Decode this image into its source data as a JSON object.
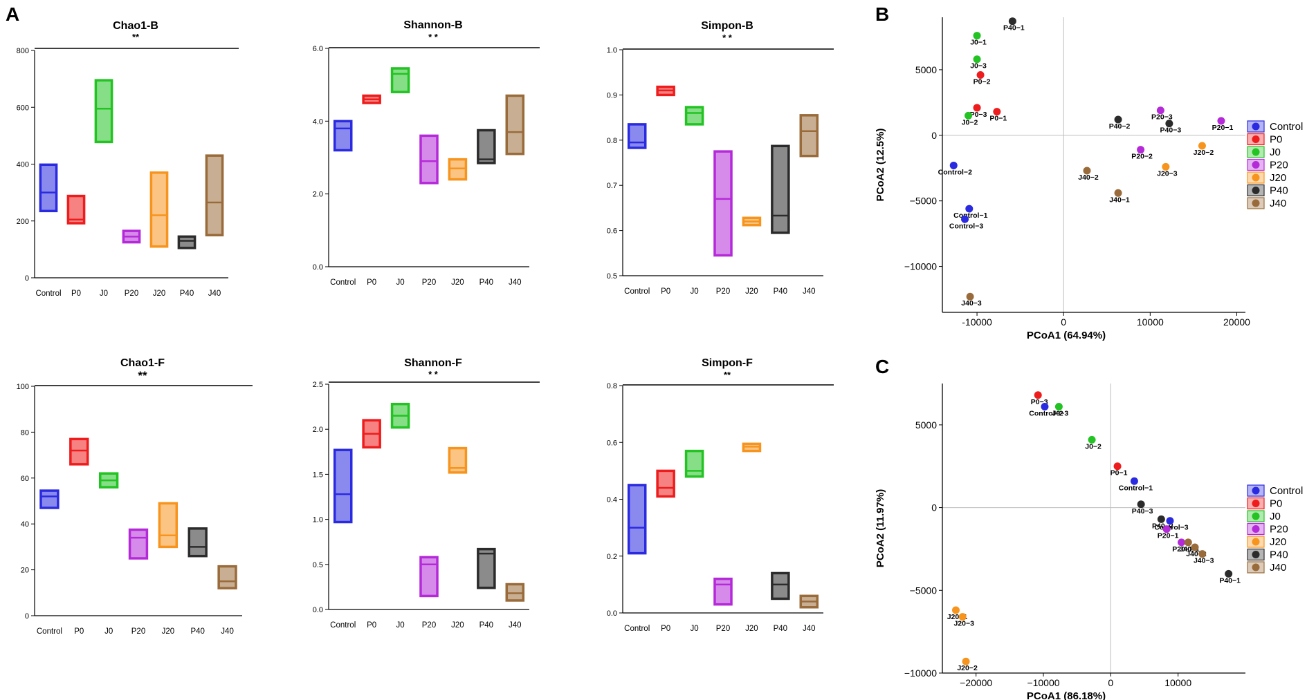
{
  "panel_labels": {
    "a": "A",
    "b": "B",
    "c": "C"
  },
  "group_colors": {
    "Control": "#2a2ae0",
    "P0": "#ee1c1c",
    "J0": "#22c322",
    "P20": "#b52ad8",
    "J20": "#f7941d",
    "P40": "#2b2b2b",
    "J40": "#9a6b3a"
  },
  "chart_data": [
    {
      "type": "box",
      "title": "Chao1-B",
      "significance": "**",
      "categories": [
        "Control",
        "P0",
        "J0",
        "P20",
        "J20",
        "P40",
        "J40"
      ],
      "ylim": [
        0,
        800
      ],
      "yticks": [
        0,
        200,
        400,
        600,
        800
      ],
      "ytick_labels": [
        "0",
        "200",
        "400",
        "600",
        "800"
      ],
      "boxes": [
        [
          235,
          300,
          398
        ],
        [
          192,
          205,
          288
        ],
        [
          478,
          595,
          695
        ],
        [
          125,
          145,
          165
        ],
        [
          110,
          220,
          370
        ],
        [
          105,
          130,
          145
        ],
        [
          150,
          265,
          430
        ]
      ]
    },
    {
      "type": "box",
      "title": "Shannon-B",
      "significance": "* *",
      "categories": [
        "Control",
        "P0",
        "J0",
        "P20",
        "J20",
        "P40",
        "J40"
      ],
      "ylim": [
        0,
        6
      ],
      "yticks": [
        0,
        2,
        4,
        6
      ],
      "ytick_labels": [
        "0.0",
        "2.0",
        "4.0",
        "6.0"
      ],
      "boxes": [
        [
          3.2,
          3.8,
          4.0
        ],
        [
          4.5,
          4.6,
          4.7
        ],
        [
          4.8,
          5.3,
          5.45
        ],
        [
          2.3,
          2.9,
          3.6
        ],
        [
          2.4,
          2.7,
          2.95
        ],
        [
          2.85,
          2.95,
          3.75
        ],
        [
          3.1,
          3.7,
          4.7
        ]
      ]
    },
    {
      "type": "box",
      "title": "Simpon-B",
      "significance": "* *",
      "categories": [
        "Control",
        "P0",
        "J0",
        "P20",
        "J20",
        "P40",
        "J40"
      ],
      "ylim": [
        0.5,
        1.0
      ],
      "yticks": [
        0.5,
        0.6,
        0.7,
        0.8,
        0.9,
        1.0
      ],
      "ytick_labels": [
        "0.5",
        "0.6",
        "0.7",
        "0.8",
        "0.9",
        "1.0"
      ],
      "boxes": [
        [
          0.783,
          0.795,
          0.835
        ],
        [
          0.9,
          0.91,
          0.918
        ],
        [
          0.835,
          0.86,
          0.873
        ],
        [
          0.545,
          0.67,
          0.775
        ],
        [
          0.612,
          0.62,
          0.628
        ],
        [
          0.595,
          0.633,
          0.787
        ],
        [
          0.765,
          0.82,
          0.855
        ]
      ]
    },
    {
      "type": "box",
      "title": "Chao1-F",
      "significance": "**",
      "categories": [
        "Control",
        "P0",
        "J0",
        "P20",
        "J20",
        "P40",
        "J40"
      ],
      "ylim": [
        0,
        100
      ],
      "yticks": [
        0,
        20,
        40,
        60,
        80,
        100
      ],
      "ytick_labels": [
        "0",
        "20",
        "40",
        "60",
        "80",
        "100"
      ],
      "boxes": [
        [
          47,
          52,
          54.5
        ],
        [
          66,
          72,
          77
        ],
        [
          56,
          59,
          62
        ],
        [
          25,
          34,
          37.5
        ],
        [
          30,
          35,
          49
        ],
        [
          26,
          30,
          38
        ],
        [
          12,
          15,
          21.5
        ]
      ]
    },
    {
      "type": "box",
      "title": "Shannon-F",
      "significance": "* *",
      "categories": [
        "Control",
        "P0",
        "J0",
        "P20",
        "J20",
        "P40",
        "J40"
      ],
      "ylim": [
        0,
        2.5
      ],
      "yticks": [
        0,
        0.5,
        1.0,
        1.5,
        2.0,
        2.5
      ],
      "ytick_labels": [
        "0.0",
        "0.5",
        "1.0",
        "1.5",
        "2.0",
        "2.5"
      ],
      "boxes": [
        [
          0.97,
          1.28,
          1.77
        ],
        [
          1.8,
          1.95,
          2.1
        ],
        [
          2.02,
          2.15,
          2.28
        ],
        [
          0.15,
          0.5,
          0.58
        ],
        [
          1.52,
          1.57,
          1.79
        ],
        [
          0.24,
          0.62,
          0.67
        ],
        [
          0.1,
          0.18,
          0.28
        ]
      ]
    },
    {
      "type": "box",
      "title": "Simpon-F",
      "significance": "**",
      "categories": [
        "Control",
        "P0",
        "J0",
        "P20",
        "J20",
        "P40",
        "J40"
      ],
      "ylim": [
        0,
        0.8
      ],
      "yticks": [
        0,
        0.2,
        0.4,
        0.6,
        0.8
      ],
      "ytick_labels": [
        "0.0",
        "0.2",
        "0.4",
        "0.6",
        "0.8"
      ],
      "boxes": [
        [
          0.21,
          0.3,
          0.45
        ],
        [
          0.41,
          0.44,
          0.5
        ],
        [
          0.48,
          0.5,
          0.57
        ],
        [
          0.03,
          0.1,
          0.12
        ],
        [
          0.57,
          0.585,
          0.595
        ],
        [
          0.05,
          0.1,
          0.14
        ],
        [
          0.02,
          0.04,
          0.06
        ]
      ]
    },
    {
      "type": "scatter",
      "panel": "B",
      "xlabel": "PCoA1 (64.94%)",
      "ylabel": "PCoA2 (12.5%)",
      "xlim": [
        -14000,
        21000
      ],
      "ylim": [
        -13500,
        9000
      ],
      "xticks": [
        -10000,
        0,
        10000,
        20000
      ],
      "xtick_labels": [
        "-10000",
        "0",
        "10000",
        "20000"
      ],
      "yticks": [
        -10000,
        -5000,
        0,
        5000
      ],
      "ytick_labels": [
        "−10000",
        "−5000",
        "0",
        "5000"
      ],
      "legend": [
        "Control",
        "P0",
        "J0",
        "P20",
        "J20",
        "P40",
        "J40"
      ],
      "points": [
        {
          "label": "P40−1",
          "group": "P40",
          "x": -5900,
          "y": 8700
        },
        {
          "label": "J0−1",
          "group": "J0",
          "x": -10000,
          "y": 7600
        },
        {
          "label": "J0−3",
          "group": "J0",
          "x": -10000,
          "y": 5800
        },
        {
          "label": "P0−2",
          "group": "P0",
          "x": -9600,
          "y": 4600
        },
        {
          "label": "P0−3",
          "group": "P0",
          "x": -10000,
          "y": 2100
        },
        {
          "label": "P0−1",
          "group": "P0",
          "x": -7700,
          "y": 1800
        },
        {
          "label": "J0−2",
          "group": "J0",
          "x": -11000,
          "y": 1500
        },
        {
          "label": "Control−2",
          "group": "Control",
          "x": -12700,
          "y": -2300
        },
        {
          "label": "Control−1",
          "group": "Control",
          "x": -10900,
          "y": -5600
        },
        {
          "label": "Control−3",
          "group": "Control",
          "x": -11400,
          "y": -6400
        },
        {
          "label": "J40−3",
          "group": "J40",
          "x": -10800,
          "y": -12300
        },
        {
          "label": "P40−2",
          "group": "P40",
          "x": 6300,
          "y": 1200
        },
        {
          "label": "P20−3",
          "group": "P20",
          "x": 11200,
          "y": 1900
        },
        {
          "label": "P40−3",
          "group": "P40",
          "x": 12200,
          "y": 900
        },
        {
          "label": "P20−1",
          "group": "P20",
          "x": 18200,
          "y": 1100
        },
        {
          "label": "P20−2",
          "group": "P20",
          "x": 8900,
          "y": -1100
        },
        {
          "label": "J20−2",
          "group": "J20",
          "x": 16000,
          "y": -800
        },
        {
          "label": "J20−3",
          "group": "J20",
          "x": 11800,
          "y": -2400
        },
        {
          "label": "J40−2",
          "group": "J40",
          "x": 2700,
          "y": -2700
        },
        {
          "label": "J40−1",
          "group": "J40",
          "x": 6300,
          "y": -4400
        }
      ]
    },
    {
      "type": "scatter",
      "panel": "C",
      "xlabel": "PCoA1 (86.18%)",
      "ylabel": "PCoA2 (11.97%)",
      "xlim": [
        -25000,
        20000
      ],
      "ylim": [
        -10000,
        7500
      ],
      "xticks": [
        -20000,
        -10000,
        0,
        10000
      ],
      "xtick_labels": [
        "−20000",
        "−10000",
        "0",
        "10000"
      ],
      "yticks": [
        -10000,
        -5000,
        0,
        5000
      ],
      "ytick_labels": [
        "−10000",
        "−5000",
        "0",
        "5000"
      ],
      "legend": [
        "Control",
        "P0",
        "J0",
        "P20",
        "J20",
        "P40",
        "J40"
      ],
      "points": [
        {
          "label": "P0−3",
          "group": "P0",
          "x": -10800,
          "y": 6800
        },
        {
          "label": "Control−2",
          "group": "Control",
          "x": -9800,
          "y": 6100
        },
        {
          "label": "J0−3",
          "group": "J0",
          "x": -7700,
          "y": 6100
        },
        {
          "label": "J0−2",
          "group": "J0",
          "x": -2800,
          "y": 4100
        },
        {
          "label": "P0−1",
          "group": "P0",
          "x": 1000,
          "y": 2500
        },
        {
          "label": "Control−1",
          "group": "Control",
          "x": 3500,
          "y": 1600
        },
        {
          "label": "P40−3",
          "group": "P40",
          "x": 4500,
          "y": 200
        },
        {
          "label": "P40−2",
          "group": "P40",
          "x": 7500,
          "y": -700
        },
        {
          "label": "Control−3",
          "group": "Control",
          "x": 8800,
          "y": -800
        },
        {
          "label": "P20−1",
          "group": "P20",
          "x": 8300,
          "y": -1300
        },
        {
          "label": "P20−2",
          "group": "P20",
          "x": 10500,
          "y": -2100
        },
        {
          "label": "J40−1",
          "group": "J40",
          "x": 11500,
          "y": -2100
        },
        {
          "label": "J40−2",
          "group": "J40",
          "x": 12500,
          "y": -2400
        },
        {
          "label": "J40−3",
          "group": "J40",
          "x": 13600,
          "y": -2800
        },
        {
          "label": "P40−1",
          "group": "P40",
          "x": 17500,
          "y": -4000
        },
        {
          "label": "J20−1",
          "group": "J20",
          "x": -23000,
          "y": -6200
        },
        {
          "label": "J20−3",
          "group": "J20",
          "x": -22000,
          "y": -6600
        },
        {
          "label": "J20−2",
          "group": "J20",
          "x": -21500,
          "y": -9300
        }
      ]
    }
  ]
}
